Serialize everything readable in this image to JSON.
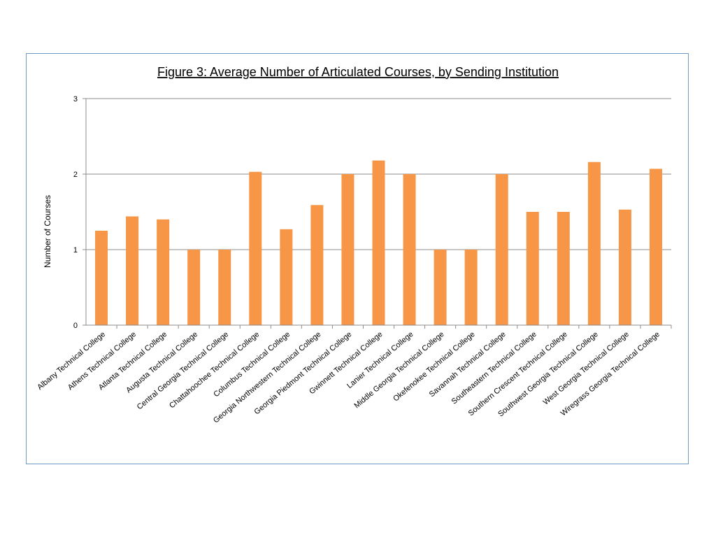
{
  "chart_data": {
    "type": "bar",
    "title": "Figure 3: Average Number of Articulated Courses, by Sending Institution",
    "xlabel": "",
    "ylabel": "Number of Courses",
    "ylim": [
      0,
      3
    ],
    "yticks": [
      0,
      1,
      2,
      3
    ],
    "grid": true,
    "legend": "none",
    "bar_color": "#f79646",
    "categories": [
      "Albany Technical College",
      "Athens Technical College",
      "Atlanta Technical College",
      "Augusta Technical College",
      "Central Georgia Technical College",
      "Chattahoochee Technical College",
      "Columbus Technical College",
      "Georgia Northwestern Technical College",
      "Georgia Piedmont Technical College",
      "Gwinnett Technical College",
      "Lanier Technical College",
      "Middle Georgia Technical College",
      "Okefenokee Technical College",
      "Savannah Technical College",
      "Southeastern Technical College",
      "Southern Crescent Technical College",
      "Southwest Georgia Technical College",
      "West Georgia Technical College",
      "Wiregrass Georgia Technical College"
    ],
    "values": [
      1.25,
      1.44,
      1.4,
      1.0,
      1.0,
      2.03,
      1.27,
      1.59,
      2.0,
      2.18,
      2.0,
      1.0,
      1.0,
      2.0,
      1.5,
      1.5,
      2.16,
      1.53,
      2.07
    ]
  }
}
